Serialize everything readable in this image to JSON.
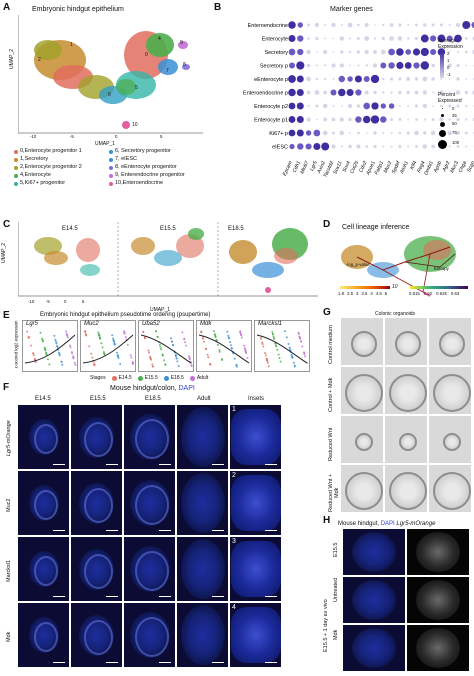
{
  "panels": {
    "A": {
      "letter": "A",
      "title": "Embryonic hindgut epithelium",
      "ylabel": "UMAP_2",
      "xlabel": "UMAP_1",
      "ticks_x": [
        "-10",
        "-5",
        "0",
        "5"
      ],
      "ticks_y": [
        "5",
        "0",
        "-5"
      ],
      "cluster_numbers": [
        "0",
        "1",
        "2",
        "3",
        "4",
        "5",
        "6",
        "7",
        "8",
        "9",
        "10"
      ],
      "legend": [
        {
          "label": "0,Enterocyte progenitor 1",
          "color": "#e06f5e"
        },
        {
          "label": "6, Secretory progenitor",
          "color": "#2f9fc4"
        },
        {
          "label": "1,Secretory",
          "color": "#c68c2e"
        },
        {
          "label": "7, eIESC",
          "color": "#3a8fd6"
        },
        {
          "label": "2,Enterocyte progenitor 2",
          "color": "#a3a12b"
        },
        {
          "label": "8, eEnterocyte progenitor",
          "color": "#7f70d8"
        },
        {
          "label": "4,Enterocyte",
          "color": "#4cae4c"
        },
        {
          "label": "9, Enterendocrine progenitor",
          "color": "#c36fd6"
        },
        {
          "label": "5,Ki67+ progenitor",
          "color": "#35b5a8"
        },
        {
          "label": "10,Enteroendocrine",
          "color": "#e2609f"
        }
      ]
    },
    "B": {
      "letter": "B",
      "title": "Marker genes",
      "rows": [
        "Enteroendocrine",
        "Enterocyte",
        "Secretory",
        "Secretory p",
        "eEnterocyte p",
        "Enteroendocrine p",
        "Enterocyte p2",
        "Enterocyte p1",
        "Ki67+ p",
        "eIESC"
      ],
      "genes": [
        "Epcam",
        "Cdh1",
        "Mki67",
        "Lgr5",
        "Axin2",
        "Tacstd2",
        "Sox11",
        "Sox4",
        "Col25",
        "Cdx2",
        "Apoe1",
        "Fabp1",
        "Muc2",
        "Spdef",
        "Atoh1",
        "Klf4",
        "Reg4",
        "Dmbt1",
        "Apob",
        "Agr2",
        "Muc3",
        "Chga",
        "Scgn"
      ],
      "legend_title_1": "Average Expression",
      "expr_ticks": [
        "2",
        "1",
        "0",
        "-1"
      ],
      "legend_title_2": "Percent Expressed",
      "pct_ticks": [
        "0",
        "25",
        "50",
        "75",
        "100"
      ]
    },
    "C": {
      "letter": "C",
      "labels": [
        "E14.5",
        "E15.5",
        "E18.5"
      ],
      "ylabel": "UMAP_2",
      "xlabel": "UMAP_1",
      "ticks_x": [
        "-10",
        "-5",
        "0",
        "5"
      ]
    },
    "D": {
      "letter": "D",
      "title": "Cell lineage inference",
      "pvalue_label": "-log_p-value",
      "pvalue_ticks": [
        "1.8",
        "2.5",
        "3",
        "3.5",
        "4",
        "4.5",
        "5"
      ],
      "entropy_label": "Entropy",
      "entropy_ticks": [
        "0.615",
        "0.62",
        "0.625",
        "0.63"
      ],
      "end_label": "10"
    },
    "E": {
      "letter": "E",
      "title": "Embryonic hindgut epithelium pseudotime ordering (psupertime)",
      "ylabel": "z-scored log2 expression",
      "genes": [
        "Lgr5",
        "Muc2",
        "Uba52",
        "Mdk",
        "Marcksl1"
      ],
      "stages_label": "Stages",
      "stages": [
        {
          "label": "E14.5",
          "color": "#e06f5e"
        },
        {
          "label": "E15.5",
          "color": "#4cae4c"
        },
        {
          "label": "E18.5",
          "color": "#3a8fd6"
        },
        {
          "label": "Adult",
          "color": "#c36fd6"
        }
      ]
    },
    "F": {
      "letter": "F",
      "title_prefix": "Mouse hindgut/colon, ",
      "title_suffix": "DAPI",
      "columns": [
        "E14.5",
        "E15.5",
        "E18.5",
        "Adult",
        "Insets"
      ],
      "rows": [
        "Lgr5-mOrange",
        "Muc2",
        "Marcksl1",
        "Mdk"
      ],
      "inset_numbers": [
        "1",
        "2",
        "3",
        "4"
      ]
    },
    "G": {
      "letter": "G",
      "title": "Colonic organoids",
      "rows": [
        "Control medium",
        "Control + Mdk",
        "Reduced Wnt",
        "Reduced Wnt + Mdk"
      ]
    },
    "H": {
      "letter": "H",
      "title_prefix": "Mouse hindgut, ",
      "title_dapi": "DAPI",
      "title_lgr5": "Lgr5-mOrange",
      "rows": [
        "E15.5",
        "Untreated",
        "Mdk"
      ],
      "group_label": "E15.5 + 1 day ex vivo"
    }
  }
}
